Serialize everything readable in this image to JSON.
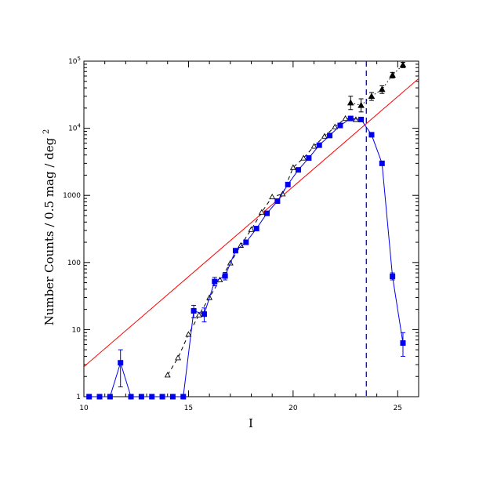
{
  "chart_data": {
    "type": "scatter",
    "xlabel": "I",
    "ylabel": "Number Counts / 0.5 mag / deg",
    "ylabel_superscript": "2",
    "xlim": [
      10,
      26
    ],
    "ylim": [
      1,
      100000
    ],
    "yscale": "log",
    "x_ticks": [
      {
        "value": 10,
        "label": "10"
      },
      {
        "value": 15,
        "label": "15"
      },
      {
        "value": 20,
        "label": "20"
      },
      {
        "value": 25,
        "label": "25"
      }
    ],
    "y_ticks": [
      {
        "value": 1,
        "label": "1",
        "sup": ""
      },
      {
        "value": 10,
        "label": "10",
        "sup": ""
      },
      {
        "value": 100,
        "label": "100",
        "sup": ""
      },
      {
        "value": 1000,
        "label": "1000",
        "sup": ""
      },
      {
        "value": 10000,
        "label": "10",
        "sup": "4"
      },
      {
        "value": 100000,
        "label": "10",
        "sup": "5"
      }
    ],
    "colors": {
      "blue_series": "#0000ee",
      "black_series": "#000000",
      "reference_line": "#ff0000",
      "limit_line": "#0000ee"
    },
    "vertical_line": {
      "x": 23.5,
      "style": "dashed"
    },
    "reference_line": {
      "points": [
        [
          10,
          2.8
        ],
        [
          26,
          55000
        ]
      ]
    },
    "series": [
      {
        "marker": "filled-square",
        "line": "solid",
        "points": [
          {
            "x": 10.25,
            "y": 1
          },
          {
            "x": 10.75,
            "y": 1
          },
          {
            "x": 11.25,
            "y": 1
          },
          {
            "x": 11.75,
            "y": 3.2,
            "err": [
              1.4,
              5.0
            ]
          },
          {
            "x": 12.25,
            "y": 1
          },
          {
            "x": 12.75,
            "y": 1
          },
          {
            "x": 13.25,
            "y": 1
          },
          {
            "x": 13.75,
            "y": 1
          },
          {
            "x": 14.25,
            "y": 1
          },
          {
            "x": 14.75,
            "y": 1
          },
          {
            "x": 15.25,
            "y": 19,
            "err": [
              15,
              23
            ]
          },
          {
            "x": 15.75,
            "y": 17,
            "err": [
              13,
              21
            ]
          },
          {
            "x": 16.25,
            "y": 52,
            "err": [
              45,
              60
            ]
          },
          {
            "x": 16.75,
            "y": 63,
            "err": [
              55,
              71
            ]
          },
          {
            "x": 17.25,
            "y": 150
          },
          {
            "x": 17.75,
            "y": 200
          },
          {
            "x": 18.25,
            "y": 320
          },
          {
            "x": 18.75,
            "y": 540
          },
          {
            "x": 19.25,
            "y": 820
          },
          {
            "x": 19.75,
            "y": 1450
          },
          {
            "x": 20.25,
            "y": 2400
          },
          {
            "x": 20.75,
            "y": 3600
          },
          {
            "x": 21.25,
            "y": 5600
          },
          {
            "x": 21.75,
            "y": 7800
          },
          {
            "x": 22.25,
            "y": 11000
          },
          {
            "x": 22.75,
            "y": 14000
          },
          {
            "x": 23.25,
            "y": 13500
          },
          {
            "x": 23.75,
            "y": 8000
          },
          {
            "x": 24.25,
            "y": 3000
          },
          {
            "x": 24.75,
            "y": 62,
            "err": [
              55,
              70
            ]
          },
          {
            "x": 25.25,
            "y": 6.3,
            "err": [
              4.0,
              9.0
            ]
          }
        ]
      },
      {
        "marker": "triangle",
        "line": "dashed",
        "points": [
          {
            "x": 14.0,
            "y": 2.1,
            "filled": false
          },
          {
            "x": 14.5,
            "y": 3.8,
            "filled": false
          },
          {
            "x": 15.0,
            "y": 8.5,
            "filled": false
          },
          {
            "x": 15.5,
            "y": 16.5,
            "filled": false
          },
          {
            "x": 16.0,
            "y": 30,
            "filled": false
          },
          {
            "x": 16.5,
            "y": 55,
            "filled": false
          },
          {
            "x": 17.0,
            "y": 98,
            "filled": false
          },
          {
            "x": 17.5,
            "y": 180,
            "filled": false
          },
          {
            "x": 18.0,
            "y": 310,
            "filled": false
          },
          {
            "x": 18.5,
            "y": 560,
            "filled": false
          },
          {
            "x": 19.0,
            "y": 950,
            "filled": false
          },
          {
            "x": 19.5,
            "y": 1050,
            "filled": false
          },
          {
            "x": 20.0,
            "y": 2600,
            "filled": false
          },
          {
            "x": 20.5,
            "y": 3600,
            "filled": false
          },
          {
            "x": 21.0,
            "y": 5400,
            "filled": false
          },
          {
            "x": 21.5,
            "y": 7600,
            "filled": false
          },
          {
            "x": 22.0,
            "y": 10500,
            "filled": false
          },
          {
            "x": 22.5,
            "y": 14000,
            "filled": false
          },
          {
            "x": 23.0,
            "y": 13500,
            "filled": false
          }
        ]
      },
      {
        "marker": "filled-triangle",
        "line": "dotted",
        "points": [
          {
            "x": 22.75,
            "y": 24000,
            "err": [
              19000,
              30000
            ]
          },
          {
            "x": 23.25,
            "y": 22000,
            "err": [
              17500,
              27500
            ]
          },
          {
            "x": 23.75,
            "y": 30000,
            "err": [
              26000,
              34000
            ]
          },
          {
            "x": 24.25,
            "y": 38000,
            "err": [
              33000,
              43000
            ]
          },
          {
            "x": 24.75,
            "y": 62000,
            "err": [
              56000,
              68000
            ]
          },
          {
            "x": 25.25,
            "y": 88000,
            "err": [
              80000,
              96000
            ]
          }
        ]
      }
    ]
  }
}
